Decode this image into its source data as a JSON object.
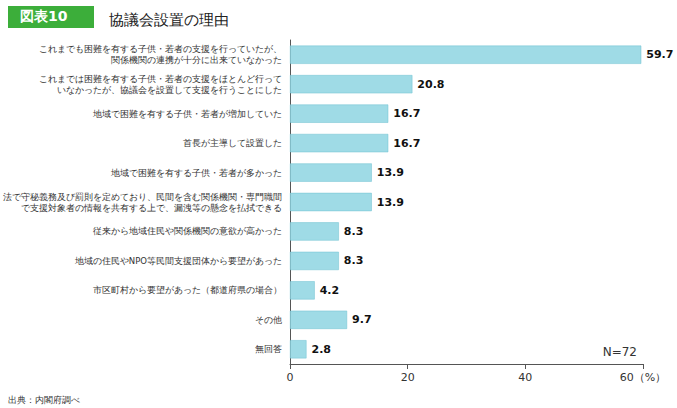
{
  "chart_data": {
    "type": "bar",
    "orientation": "horizontal",
    "figure_number": "図表10",
    "title": "協議会設置の理由",
    "source": "出典：内閣府調べ",
    "annotations": [
      "N=72"
    ],
    "categories": [
      "これまでも困難を有する子供・若者の支援を行っていたが、\n関係機関の連携が十分に出来ていなかった",
      "これまでは困難を有する子供・若者の支援をほとんど行って\nいなかったが、協議会を設置して支援を行うことにした",
      "地域で困難を有する子供・若者が増加していた",
      "首長が主導して設置した",
      "地域で困難を有する子供・若者が多かった",
      "法で守秘義務及び罰則を定めており、民間を含む関係機関・専門職間\nで支援対象者の情報を共有する上で、漏洩等の懸念を払拭できる",
      "従来から地域住民や関係機関の意欲が高かった",
      "地域の住民やNPO等民間支援団体から要望があった",
      "市区町村から要望があった（都道府県の場合）",
      "その他",
      "無回答"
    ],
    "values": [
      59.7,
      20.8,
      16.7,
      16.7,
      13.9,
      13.9,
      8.3,
      8.3,
      4.2,
      9.7,
      2.8
    ],
    "color": "#9fdbe6",
    "xlim": [
      0,
      60
    ],
    "xticks": [
      0,
      20,
      40,
      {
        "value": 60,
        "label": "60（%）"
      }
    ],
    "grid": false,
    "data_labels": true
  }
}
